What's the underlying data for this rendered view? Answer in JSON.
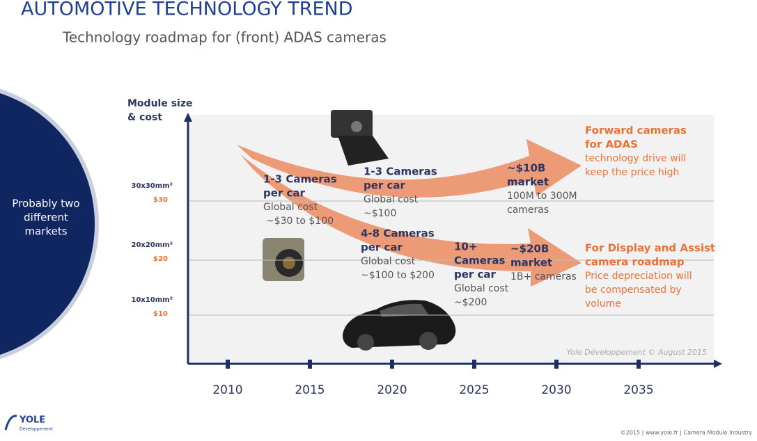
{
  "header": {
    "title": "AUTOMOTIVE TECHNOLOGY TREND",
    "subtitle": "Technology roadmap for (front) ADAS cameras"
  },
  "side_note": {
    "lines": [
      "Probably two",
      "different",
      "markets"
    ]
  },
  "y_axis": {
    "label_lines": [
      "Module size",
      "& cost"
    ],
    "levels": [
      {
        "size": "30x30mm²",
        "cost": "$30"
      },
      {
        "size": "20x20mm²",
        "cost": "$20"
      },
      {
        "size": "10x10mm²",
        "cost": "$10"
      }
    ]
  },
  "x_axis": {
    "ticks": [
      2010,
      2015,
      2020,
      2025,
      2030,
      2035
    ]
  },
  "annotations": [
    {
      "heading": [
        "1-3 Cameras",
        "per car"
      ],
      "body": [
        "Global cost",
        "~$30 to $100"
      ]
    },
    {
      "heading": [
        "1-3 Cameras",
        "per car"
      ],
      "body": [
        "Global cost",
        "~$100"
      ]
    },
    {
      "heading": [
        "~$10B",
        "market"
      ],
      "body": [
        "100M to 300M",
        "cameras"
      ]
    },
    {
      "heading": [
        "4-8 Cameras",
        "per car"
      ],
      "body": [
        "Global cost",
        "~$100 to $200"
      ]
    },
    {
      "heading": [
        "10+",
        "Cameras",
        "per car"
      ],
      "body": [
        "Global cost",
        "~$200"
      ]
    },
    {
      "heading": [
        "~$20B",
        "market"
      ],
      "body": [
        "1B+ cameras"
      ]
    },
    {
      "heading": [
        "Forward cameras",
        "for ADAS"
      ],
      "body": [
        "technology drive will",
        "keep the price high"
      ]
    },
    {
      "heading": [
        "For Display and Assist",
        "camera roadmap"
      ],
      "body": [
        "Price depreciation will",
        "be compensated by",
        "volume"
      ]
    }
  ],
  "watermark": "Yole Développement © August 2015",
  "footer": "©2015 | www.yole.fr | Camera Module Industry",
  "logo": {
    "name": "YOLE",
    "tagline": "Développement"
  }
}
